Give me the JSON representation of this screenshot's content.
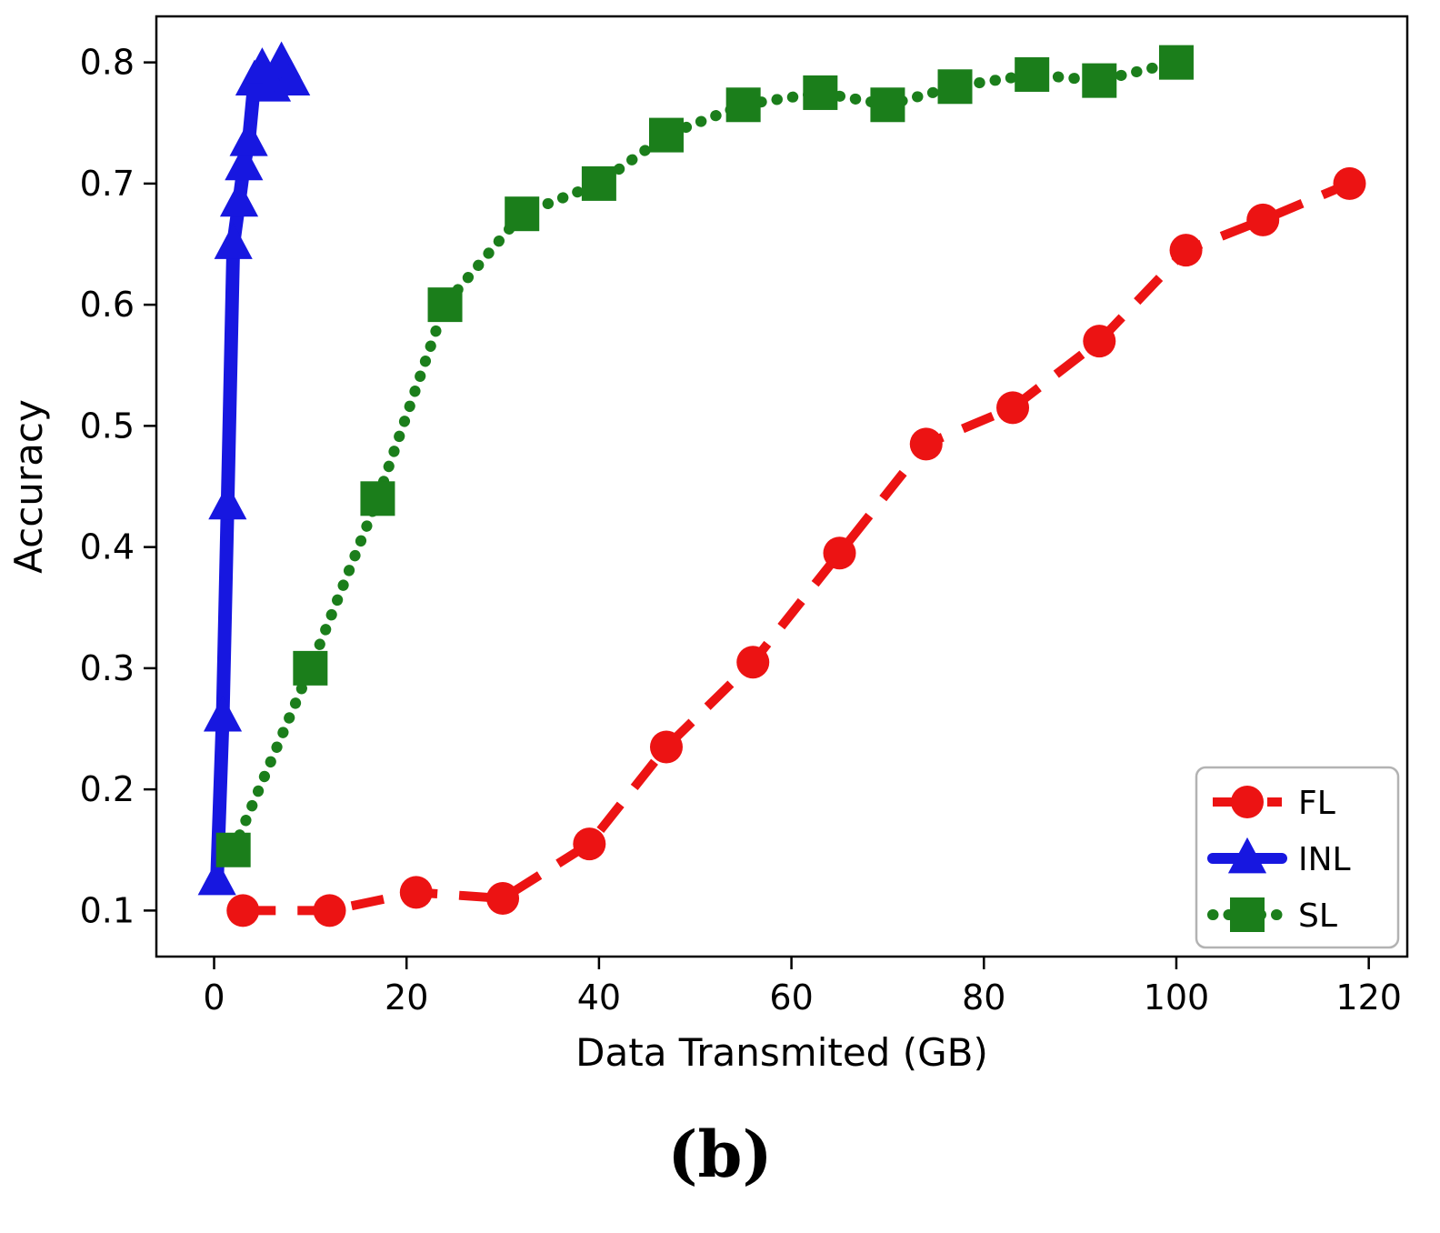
{
  "figure": {
    "caption": "(b)"
  },
  "chart_data": {
    "type": "line",
    "title": "",
    "xlabel": "Data Transmited (GB)",
    "ylabel": "Accuracy",
    "xlim": [
      -6,
      124
    ],
    "ylim": [
      0.062,
      0.838
    ],
    "xticks": [
      0,
      20,
      40,
      60,
      80,
      100,
      120
    ],
    "yticks": [
      0.1,
      0.2,
      0.3,
      0.4,
      0.5,
      0.6,
      0.7,
      0.8
    ],
    "grid": false,
    "legend_position": "lower right",
    "series": [
      {
        "name": "FL",
        "color": "#ec1313",
        "marker": "circle",
        "linestyle": "dashed",
        "x": [
          3,
          12,
          21,
          30,
          39,
          47,
          56,
          65,
          74,
          83,
          92,
          101,
          109,
          118
        ],
        "y": [
          0.1,
          0.1,
          0.115,
          0.11,
          0.155,
          0.235,
          0.305,
          0.395,
          0.485,
          0.515,
          0.57,
          0.645,
          0.67,
          0.7
        ]
      },
      {
        "name": "INL",
        "color": "#1717e0",
        "marker": "triangle",
        "linestyle": "solid",
        "x": [
          0.3,
          0.9,
          1.4,
          2.0,
          2.6,
          3.1,
          3.6,
          4.2,
          5.0,
          6.0,
          7.0,
          8.0
        ],
        "y": [
          0.125,
          0.26,
          0.435,
          0.65,
          0.685,
          0.715,
          0.735,
          0.785,
          0.795,
          0.78,
          0.8,
          0.785
        ]
      },
      {
        "name": "SL",
        "color": "#1b7e1b",
        "marker": "square",
        "linestyle": "dotted",
        "x": [
          2,
          10,
          17,
          24,
          32,
          40,
          47,
          55,
          63,
          70,
          77,
          85,
          92,
          100
        ],
        "y": [
          0.15,
          0.3,
          0.44,
          0.6,
          0.675,
          0.7,
          0.74,
          0.765,
          0.775,
          0.765,
          0.78,
          0.79,
          0.785,
          0.8
        ]
      }
    ]
  }
}
